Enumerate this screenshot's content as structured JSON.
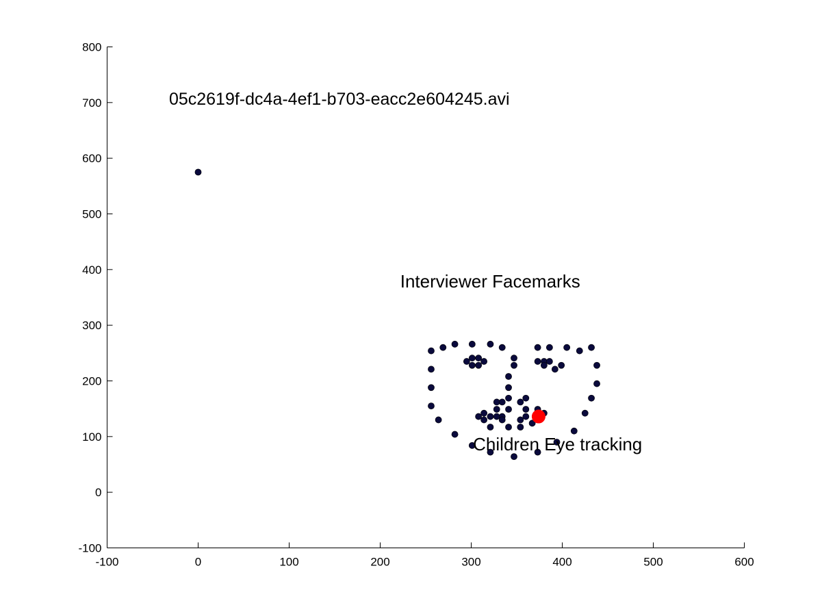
{
  "chart_data": {
    "type": "scatter",
    "title": "",
    "xlabel": "",
    "ylabel": "",
    "xlim": [
      -100,
      600
    ],
    "ylim": [
      -100,
      800
    ],
    "x_ticks": [
      -100,
      0,
      100,
      200,
      300,
      400,
      500,
      600
    ],
    "y_ticks": [
      -100,
      0,
      100,
      200,
      300,
      400,
      500,
      600,
      700,
      800
    ],
    "grid": false,
    "annotations": [
      {
        "text": "05c2619f-dc4a-4ef1-b703-eacc2e604245.avi",
        "x": -32,
        "y": 696
      },
      {
        "text": "Interviewer Facemarks",
        "x": 222,
        "y": 368
      },
      {
        "text": "Children Eye tracking",
        "x": 302,
        "y": 75
      }
    ],
    "series": [
      {
        "color": "#0a0a3c",
        "points": [
          [
            0,
            575
          ],
          [
            256,
            254
          ],
          [
            256,
            221
          ],
          [
            256,
            188
          ],
          [
            256,
            155
          ],
          [
            264,
            130
          ],
          [
            282,
            104
          ],
          [
            301,
            84
          ],
          [
            321,
            72
          ],
          [
            347,
            64
          ],
          [
            373,
            72
          ],
          [
            394,
            90
          ],
          [
            413,
            110
          ],
          [
            425,
            142
          ],
          [
            432,
            169
          ],
          [
            438,
            195
          ],
          [
            438,
            228
          ],
          [
            269,
            260
          ],
          [
            282,
            266
          ],
          [
            301,
            266
          ],
          [
            321,
            266
          ],
          [
            334,
            260
          ],
          [
            373,
            260
          ],
          [
            386,
            260
          ],
          [
            405,
            260
          ],
          [
            419,
            254
          ],
          [
            432,
            260
          ],
          [
            295,
            235
          ],
          [
            301,
            241
          ],
          [
            308,
            241
          ],
          [
            314,
            235
          ],
          [
            308,
            228
          ],
          [
            301,
            228
          ],
          [
            373,
            235
          ],
          [
            380,
            235
          ],
          [
            386,
            235
          ],
          [
            399,
            228
          ],
          [
            392,
            221
          ],
          [
            380,
            228
          ],
          [
            347,
            241
          ],
          [
            347,
            228
          ],
          [
            341,
            208
          ],
          [
            341,
            188
          ],
          [
            341,
            169
          ],
          [
            328,
            162
          ],
          [
            334,
            162
          ],
          [
            341,
            149
          ],
          [
            328,
            149
          ],
          [
            354,
            162
          ],
          [
            360,
            169
          ],
          [
            360,
            149
          ],
          [
            308,
            136
          ],
          [
            314,
            142
          ],
          [
            321,
            136
          ],
          [
            328,
            136
          ],
          [
            334,
            136
          ],
          [
            341,
            117
          ],
          [
            354,
            117
          ],
          [
            354,
            130
          ],
          [
            360,
            136
          ],
          [
            367,
            124
          ],
          [
            373,
            149
          ],
          [
            380,
            142
          ],
          [
            314,
            130
          ],
          [
            321,
            117
          ],
          [
            334,
            130
          ]
        ]
      },
      {
        "name": "Children Eye tracking",
        "color": "#ff0000",
        "points": [
          [
            374,
            136
          ]
        ]
      }
    ]
  }
}
